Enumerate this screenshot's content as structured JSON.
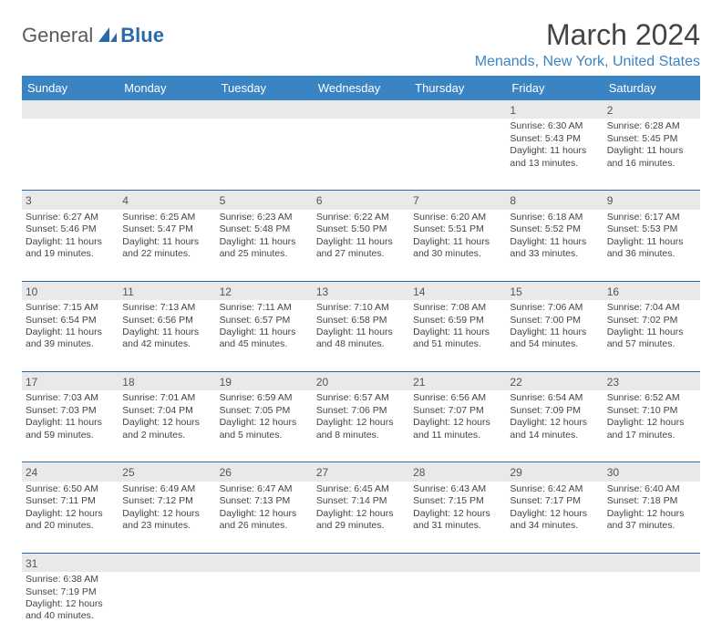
{
  "colors": {
    "header_blue": "#3b84c4",
    "logo_blue": "#2b6aa8",
    "daynum_bg": "#e9e9e9",
    "row_sep": "#2b6aa8",
    "location": "#3b84c4"
  },
  "logo": {
    "general": "General",
    "blue": "Blue"
  },
  "title": "March 2024",
  "location": "Menands, New York, United States",
  "weekdays": [
    "Sunday",
    "Monday",
    "Tuesday",
    "Wednesday",
    "Thursday",
    "Friday",
    "Saturday"
  ],
  "weeks": [
    [
      null,
      null,
      null,
      null,
      null,
      {
        "n": "1",
        "sr": "Sunrise: 6:30 AM",
        "ss": "Sunset: 5:43 PM",
        "d1": "Daylight: 11 hours",
        "d2": "and 13 minutes."
      },
      {
        "n": "2",
        "sr": "Sunrise: 6:28 AM",
        "ss": "Sunset: 5:45 PM",
        "d1": "Daylight: 11 hours",
        "d2": "and 16 minutes."
      }
    ],
    [
      {
        "n": "3",
        "sr": "Sunrise: 6:27 AM",
        "ss": "Sunset: 5:46 PM",
        "d1": "Daylight: 11 hours",
        "d2": "and 19 minutes."
      },
      {
        "n": "4",
        "sr": "Sunrise: 6:25 AM",
        "ss": "Sunset: 5:47 PM",
        "d1": "Daylight: 11 hours",
        "d2": "and 22 minutes."
      },
      {
        "n": "5",
        "sr": "Sunrise: 6:23 AM",
        "ss": "Sunset: 5:48 PM",
        "d1": "Daylight: 11 hours",
        "d2": "and 25 minutes."
      },
      {
        "n": "6",
        "sr": "Sunrise: 6:22 AM",
        "ss": "Sunset: 5:50 PM",
        "d1": "Daylight: 11 hours",
        "d2": "and 27 minutes."
      },
      {
        "n": "7",
        "sr": "Sunrise: 6:20 AM",
        "ss": "Sunset: 5:51 PM",
        "d1": "Daylight: 11 hours",
        "d2": "and 30 minutes."
      },
      {
        "n": "8",
        "sr": "Sunrise: 6:18 AM",
        "ss": "Sunset: 5:52 PM",
        "d1": "Daylight: 11 hours",
        "d2": "and 33 minutes."
      },
      {
        "n": "9",
        "sr": "Sunrise: 6:17 AM",
        "ss": "Sunset: 5:53 PM",
        "d1": "Daylight: 11 hours",
        "d2": "and 36 minutes."
      }
    ],
    [
      {
        "n": "10",
        "sr": "Sunrise: 7:15 AM",
        "ss": "Sunset: 6:54 PM",
        "d1": "Daylight: 11 hours",
        "d2": "and 39 minutes."
      },
      {
        "n": "11",
        "sr": "Sunrise: 7:13 AM",
        "ss": "Sunset: 6:56 PM",
        "d1": "Daylight: 11 hours",
        "d2": "and 42 minutes."
      },
      {
        "n": "12",
        "sr": "Sunrise: 7:11 AM",
        "ss": "Sunset: 6:57 PM",
        "d1": "Daylight: 11 hours",
        "d2": "and 45 minutes."
      },
      {
        "n": "13",
        "sr": "Sunrise: 7:10 AM",
        "ss": "Sunset: 6:58 PM",
        "d1": "Daylight: 11 hours",
        "d2": "and 48 minutes."
      },
      {
        "n": "14",
        "sr": "Sunrise: 7:08 AM",
        "ss": "Sunset: 6:59 PM",
        "d1": "Daylight: 11 hours",
        "d2": "and 51 minutes."
      },
      {
        "n": "15",
        "sr": "Sunrise: 7:06 AM",
        "ss": "Sunset: 7:00 PM",
        "d1": "Daylight: 11 hours",
        "d2": "and 54 minutes."
      },
      {
        "n": "16",
        "sr": "Sunrise: 7:04 AM",
        "ss": "Sunset: 7:02 PM",
        "d1": "Daylight: 11 hours",
        "d2": "and 57 minutes."
      }
    ],
    [
      {
        "n": "17",
        "sr": "Sunrise: 7:03 AM",
        "ss": "Sunset: 7:03 PM",
        "d1": "Daylight: 11 hours",
        "d2": "and 59 minutes."
      },
      {
        "n": "18",
        "sr": "Sunrise: 7:01 AM",
        "ss": "Sunset: 7:04 PM",
        "d1": "Daylight: 12 hours",
        "d2": "and 2 minutes."
      },
      {
        "n": "19",
        "sr": "Sunrise: 6:59 AM",
        "ss": "Sunset: 7:05 PM",
        "d1": "Daylight: 12 hours",
        "d2": "and 5 minutes."
      },
      {
        "n": "20",
        "sr": "Sunrise: 6:57 AM",
        "ss": "Sunset: 7:06 PM",
        "d1": "Daylight: 12 hours",
        "d2": "and 8 minutes."
      },
      {
        "n": "21",
        "sr": "Sunrise: 6:56 AM",
        "ss": "Sunset: 7:07 PM",
        "d1": "Daylight: 12 hours",
        "d2": "and 11 minutes."
      },
      {
        "n": "22",
        "sr": "Sunrise: 6:54 AM",
        "ss": "Sunset: 7:09 PM",
        "d1": "Daylight: 12 hours",
        "d2": "and 14 minutes."
      },
      {
        "n": "23",
        "sr": "Sunrise: 6:52 AM",
        "ss": "Sunset: 7:10 PM",
        "d1": "Daylight: 12 hours",
        "d2": "and 17 minutes."
      }
    ],
    [
      {
        "n": "24",
        "sr": "Sunrise: 6:50 AM",
        "ss": "Sunset: 7:11 PM",
        "d1": "Daylight: 12 hours",
        "d2": "and 20 minutes."
      },
      {
        "n": "25",
        "sr": "Sunrise: 6:49 AM",
        "ss": "Sunset: 7:12 PM",
        "d1": "Daylight: 12 hours",
        "d2": "and 23 minutes."
      },
      {
        "n": "26",
        "sr": "Sunrise: 6:47 AM",
        "ss": "Sunset: 7:13 PM",
        "d1": "Daylight: 12 hours",
        "d2": "and 26 minutes."
      },
      {
        "n": "27",
        "sr": "Sunrise: 6:45 AM",
        "ss": "Sunset: 7:14 PM",
        "d1": "Daylight: 12 hours",
        "d2": "and 29 minutes."
      },
      {
        "n": "28",
        "sr": "Sunrise: 6:43 AM",
        "ss": "Sunset: 7:15 PM",
        "d1": "Daylight: 12 hours",
        "d2": "and 31 minutes."
      },
      {
        "n": "29",
        "sr": "Sunrise: 6:42 AM",
        "ss": "Sunset: 7:17 PM",
        "d1": "Daylight: 12 hours",
        "d2": "and 34 minutes."
      },
      {
        "n": "30",
        "sr": "Sunrise: 6:40 AM",
        "ss": "Sunset: 7:18 PM",
        "d1": "Daylight: 12 hours",
        "d2": "and 37 minutes."
      }
    ],
    [
      {
        "n": "31",
        "sr": "Sunrise: 6:38 AM",
        "ss": "Sunset: 7:19 PM",
        "d1": "Daylight: 12 hours",
        "d2": "and 40 minutes."
      },
      null,
      null,
      null,
      null,
      null,
      null
    ]
  ]
}
